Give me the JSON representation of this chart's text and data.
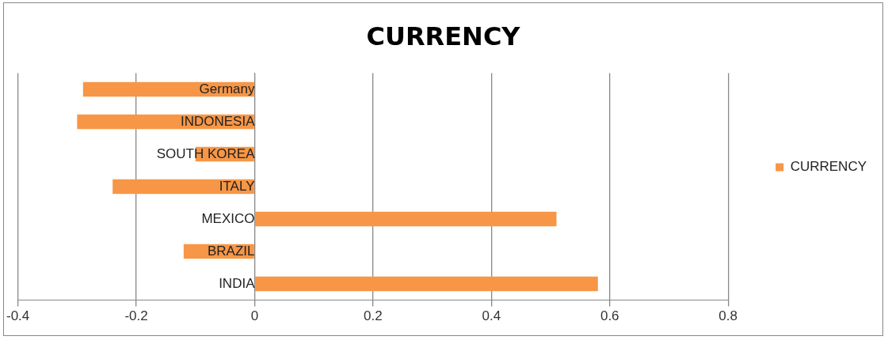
{
  "chart_data": {
    "type": "bar",
    "orientation": "horizontal",
    "title": "CURRENCY",
    "categories": [
      "Germany",
      "INDONESIA",
      "SOUTH KOREA",
      "ITALY",
      "MEXICO",
      "BRAZIL",
      "INDIA"
    ],
    "series": [
      {
        "name": "CURRENCY",
        "color": "#f79646",
        "values": [
          -0.29,
          -0.3,
          -0.1,
          -0.24,
          0.51,
          -0.12,
          0.58
        ]
      }
    ],
    "xlim": [
      -0.4,
      0.8
    ],
    "xticks": [
      -0.4,
      -0.2,
      0,
      0.2,
      0.4,
      0.6,
      0.8
    ],
    "grid": "x",
    "legend": "right"
  }
}
